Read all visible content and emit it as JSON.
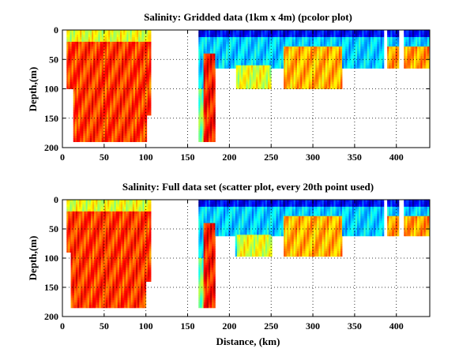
{
  "chart_data": [
    {
      "type": "heatmap",
      "title": "Salinity: Gridded data (1km x 4m) (pcolor plot)",
      "xlabel": "",
      "ylabel": "Depth,(m)",
      "xlim": [
        0,
        440
      ],
      "ylim": [
        0,
        200
      ],
      "y_reversed": true,
      "xticks": [
        0,
        50,
        100,
        150,
        200,
        250,
        300,
        350,
        400
      ],
      "yticks": [
        0,
        50,
        100,
        150,
        200
      ],
      "grid": true,
      "colormap": "jet",
      "columns": [
        {
          "x0": 5,
          "x1": 13,
          "depth": 100
        },
        {
          "x0": 13,
          "x1": 100,
          "depth": 190
        },
        {
          "x0": 100,
          "x1": 105,
          "depth": 145
        },
        {
          "x0": 163,
          "x1": 183,
          "depth": 190
        },
        {
          "x0": 183,
          "x1": 192,
          "depth": 65
        },
        {
          "x0": 192,
          "x1": 208,
          "depth": 65
        },
        {
          "x0": 208,
          "x1": 250,
          "depth": 100
        },
        {
          "x0": 250,
          "x1": 265,
          "depth": 65
        },
        {
          "x0": 265,
          "x1": 335,
          "depth": 100
        },
        {
          "x0": 335,
          "x1": 440,
          "depth": 65
        }
      ],
      "gaps": [
        [
          385,
          388
        ],
        [
          402,
          408
        ]
      ],
      "fields": [
        {
          "x0": 5,
          "x1": 105,
          "z0": 0,
          "z1": 200,
          "value": 0.82
        },
        {
          "x0": 5,
          "x1": 105,
          "z0": 0,
          "z1": 20,
          "value": 0.6
        },
        {
          "x0": 163,
          "x1": 440,
          "z0": 0,
          "z1": 100,
          "value": 0.33
        },
        {
          "x0": 163,
          "x1": 440,
          "z0": 0,
          "z1": 12,
          "value": 0.12
        },
        {
          "x0": 168,
          "x1": 183,
          "z0": 40,
          "z1": 190,
          "value": 0.85
        },
        {
          "x0": 208,
          "x1": 250,
          "z0": 60,
          "z1": 100,
          "value": 0.6
        },
        {
          "x0": 265,
          "x1": 335,
          "z0": 25,
          "z1": 100,
          "value": 0.7
        },
        {
          "x0": 388,
          "x1": 440,
          "z0": 25,
          "z1": 65,
          "value": 0.72
        }
      ]
    },
    {
      "type": "scatter",
      "title": "Salinity: Full data set (scatter plot, every 20th point used)",
      "xlabel": "Distance, (km)",
      "ylabel": "Depth,(m)",
      "xlim": [
        0,
        440
      ],
      "ylim": [
        0,
        200
      ],
      "y_reversed": true,
      "xticks": [
        0,
        50,
        100,
        150,
        200,
        250,
        300,
        350,
        400
      ],
      "yticks": [
        0,
        50,
        100,
        150,
        200
      ],
      "grid": true,
      "colormap": "jet",
      "columns": [
        {
          "x0": 5,
          "x1": 10,
          "depth": 90
        },
        {
          "x0": 10,
          "x1": 100,
          "depth": 185
        },
        {
          "x0": 100,
          "x1": 105,
          "depth": 140
        },
        {
          "x0": 163,
          "x1": 183,
          "depth": 185
        },
        {
          "x0": 183,
          "x1": 207,
          "depth": 62
        },
        {
          "x0": 207,
          "x1": 250,
          "depth": 97
        },
        {
          "x0": 250,
          "x1": 265,
          "depth": 62
        },
        {
          "x0": 265,
          "x1": 335,
          "depth": 97
        },
        {
          "x0": 335,
          "x1": 440,
          "depth": 62
        }
      ],
      "gaps": [
        [
          385,
          388
        ],
        [
          402,
          408
        ]
      ],
      "fields": [
        {
          "x0": 5,
          "x1": 105,
          "z0": 0,
          "z1": 200,
          "value": 0.82
        },
        {
          "x0": 5,
          "x1": 105,
          "z0": 0,
          "z1": 20,
          "value": 0.6
        },
        {
          "x0": 163,
          "x1": 440,
          "z0": 0,
          "z1": 100,
          "value": 0.33
        },
        {
          "x0": 163,
          "x1": 440,
          "z0": 0,
          "z1": 12,
          "value": 0.12
        },
        {
          "x0": 168,
          "x1": 183,
          "z0": 40,
          "z1": 190,
          "value": 0.85
        },
        {
          "x0": 208,
          "x1": 250,
          "z0": 60,
          "z1": 100,
          "value": 0.6
        },
        {
          "x0": 265,
          "x1": 335,
          "z0": 25,
          "z1": 100,
          "value": 0.7
        },
        {
          "x0": 388,
          "x1": 440,
          "z0": 25,
          "z1": 65,
          "value": 0.72
        }
      ]
    }
  ]
}
